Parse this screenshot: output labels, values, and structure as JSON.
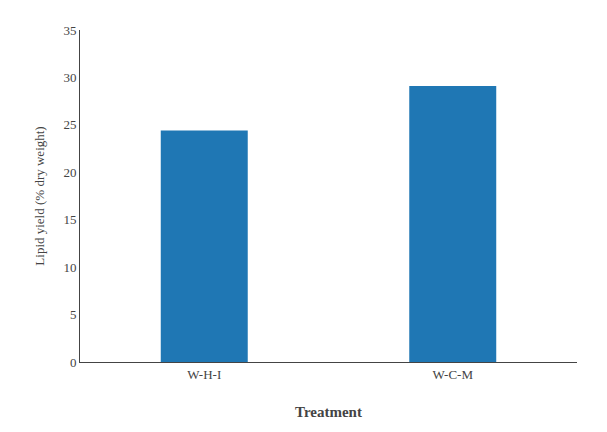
{
  "chart_data": {
    "type": "bar",
    "categories": [
      "W-H-I",
      "W-C-M"
    ],
    "values": [
      24.4,
      29.1
    ],
    "xlabel": "Treatment",
    "ylabel": "Lipid yield (% dry weight)",
    "ylim": [
      0,
      35
    ],
    "yticks": [
      0,
      5,
      10,
      15,
      20,
      25,
      30,
      35
    ],
    "grid": false
  }
}
